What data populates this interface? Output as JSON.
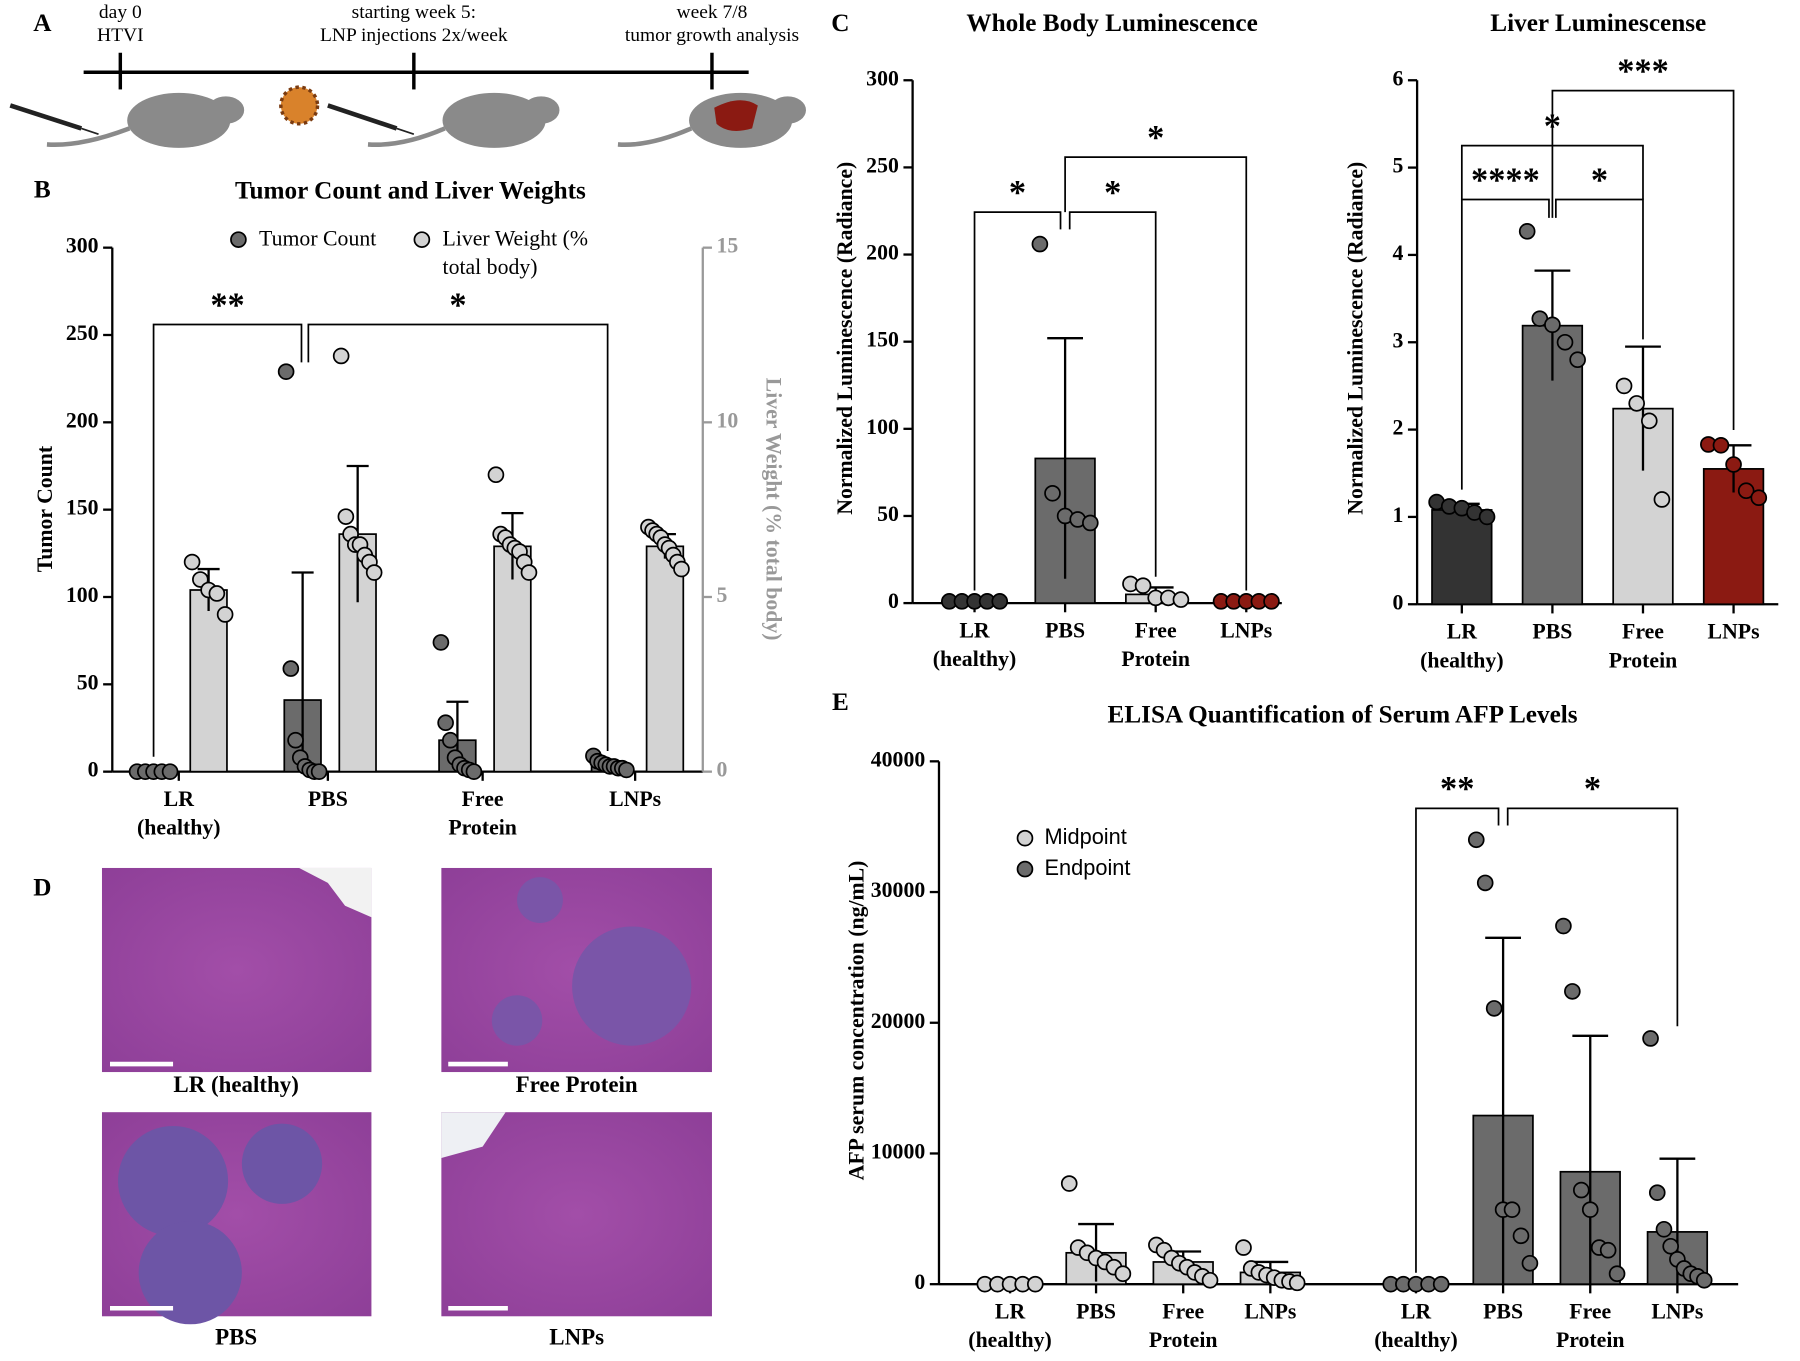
{
  "panel_labels": [
    "A",
    "B",
    "C",
    "D",
    "E"
  ],
  "timeline": {
    "events": [
      {
        "time": "day 0",
        "text": "HTVI"
      },
      {
        "time": "starting week 5:",
        "text": "LNP injections 2x/week"
      },
      {
        "time": "week 7/8",
        "text": "tumor growth analysis"
      }
    ]
  },
  "histology": {
    "captions": [
      "LR (healthy)",
      "Free Protein",
      "PBS",
      "LNPs"
    ]
  },
  "chart_data": [
    {
      "type": "bar",
      "title": "Tumor Count and Liver Weights",
      "y_label": "Tumor Count",
      "y2_label": "Liver Weight (% total body)",
      "categories": [
        "LR (healthy)",
        "PBS",
        "Free Protein",
        "LNPs"
      ],
      "series": [
        {
          "name": "Tumor Count",
          "color": "#6b6b6b",
          "values": [
            0,
            41,
            18,
            4
          ],
          "errors": [
            0,
            73,
            22,
            2
          ],
          "points": [
            [
              0,
              0,
              0,
              0,
              0
            ],
            [
              229,
              59,
              18,
              8,
              3,
              1,
              0,
              0
            ],
            [
              74,
              28,
              18,
              8,
              4,
              2,
              1,
              0
            ],
            [
              9,
              6,
              5,
              4,
              3,
              3,
              2,
              2,
              1
            ]
          ]
        },
        {
          "name": "Liver Weight (% total body)",
          "color": "#d3d3d3",
          "axis": "y2",
          "values": [
            5.2,
            6.8,
            6.45,
            6.45
          ],
          "errors": [
            0.6,
            1.95,
            0.95,
            0.35
          ],
          "points": [
            [
              6.0,
              5.5,
              5.2,
              5.1,
              4.5
            ],
            [
              11.9,
              7.3,
              6.8,
              6.5,
              6.5,
              6.2,
              6.0,
              5.7
            ],
            [
              8.5,
              6.8,
              6.7,
              6.5,
              6.4,
              6.3,
              6.0,
              5.7
            ],
            [
              7.0,
              6.9,
              6.8,
              6.7,
              6.5,
              6.4,
              6.2,
              6.0,
              5.8
            ]
          ]
        }
      ],
      "ylim": [
        0,
        300
      ],
      "yticks": [
        0,
        50,
        100,
        150,
        200,
        250,
        300
      ],
      "y2lim": [
        0,
        15
      ],
      "y2ticks": [
        0,
        5,
        10,
        15
      ],
      "legend": "upper center",
      "annotations": [
        "**",
        "*"
      ]
    },
    {
      "type": "bar",
      "title": "Whole Body Luminescence",
      "y_label": "Normalized  Luminescence (Radiance)",
      "categories": [
        "LR (healthy)",
        "PBS",
        "Free Protein",
        "LNPs"
      ],
      "values": [
        0.5,
        83,
        5,
        1
      ],
      "errors": [
        0,
        69,
        4,
        0
      ],
      "colors": [
        "#333333",
        "#6b6b6b",
        "#d3d3d3",
        "#8b1a12"
      ],
      "points": [
        [
          1,
          1,
          1,
          1,
          1
        ],
        [
          206,
          63,
          50,
          48,
          46
        ],
        [
          11,
          10,
          3,
          3,
          2
        ],
        [
          1,
          1,
          1,
          1,
          1
        ]
      ],
      "ylim": [
        0,
        300
      ],
      "yticks": [
        0,
        50,
        100,
        150,
        200,
        250,
        300
      ],
      "annotations": [
        "*",
        "*",
        "*"
      ]
    },
    {
      "type": "bar",
      "title": "Liver Luminescense",
      "y_label": "Normalized  Luminescence (Radiance)",
      "categories": [
        "LR (healthy)",
        "PBS",
        "Free Protein",
        "LNPs"
      ],
      "values": [
        1.08,
        3.19,
        2.24,
        1.55
      ],
      "errors": [
        0.07,
        0.63,
        0.71,
        0.27
      ],
      "colors": [
        "#333333",
        "#6b6b6b",
        "#d3d3d3",
        "#8b1a12"
      ],
      "points": [
        [
          1.17,
          1.12,
          1.1,
          1.05,
          1.0
        ],
        [
          4.27,
          3.27,
          3.2,
          3.0,
          2.8
        ],
        [
          2.5,
          2.3,
          2.1,
          1.2
        ],
        [
          1.83,
          1.82,
          1.6,
          1.3,
          1.22
        ]
      ],
      "ylim": [
        0,
        6
      ],
      "yticks": [
        0,
        1,
        2,
        3,
        4,
        5,
        6
      ],
      "annotations": [
        "****",
        "*",
        "*",
        "***"
      ]
    },
    {
      "type": "bar",
      "title": "ELISA Quantification of Serum AFP Levels",
      "y_label": "AFP serum concentration (ng/mL)",
      "categories": [
        "LR (healthy)",
        "PBS",
        "Free Protein",
        "LNPs",
        "LR (healthy)",
        "PBS",
        "Free Protein",
        "LNPs"
      ],
      "series": [
        {
          "name": "Midpoint",
          "color": "#d3d3d3",
          "values": [
            0,
            2400,
            1700,
            900,
            null,
            null,
            null,
            null
          ],
          "errors": [
            0,
            2200,
            800,
            800,
            null,
            null,
            null,
            null
          ],
          "points": [
            [
              0,
              0,
              0,
              0,
              0
            ],
            [
              7700,
              2800,
              2400,
              2000,
              1700,
              1300,
              800
            ],
            [
              3000,
              2600,
              2000,
              1600,
              1300,
              900,
              600,
              300
            ],
            [
              2800,
              1200,
              900,
              700,
              500,
              300,
              200,
              100
            ],
            null,
            null,
            null,
            null
          ]
        },
        {
          "name": "Endpoint",
          "color": "#6b6b6b",
          "values": [
            null,
            null,
            null,
            null,
            0,
            12900,
            8600,
            4000
          ],
          "errors": [
            null,
            null,
            null,
            null,
            0,
            13600,
            10400,
            5600
          ],
          "points": [
            null,
            null,
            null,
            null,
            [
              0,
              0,
              0,
              0,
              0
            ],
            [
              34000,
              30700,
              21100,
              5700,
              5700,
              3700,
              1600
            ],
            [
              27400,
              22400,
              7200,
              5700,
              2800,
              2600,
              800
            ],
            [
              18800,
              7000,
              4200,
              2900,
              1900,
              1200,
              800,
              600,
              300
            ]
          ]
        }
      ],
      "ylim": [
        0,
        40000
      ],
      "yticks": [
        0,
        10000,
        20000,
        30000,
        40000
      ],
      "legend": "upper left",
      "annotations": [
        "**",
        "*"
      ]
    }
  ]
}
